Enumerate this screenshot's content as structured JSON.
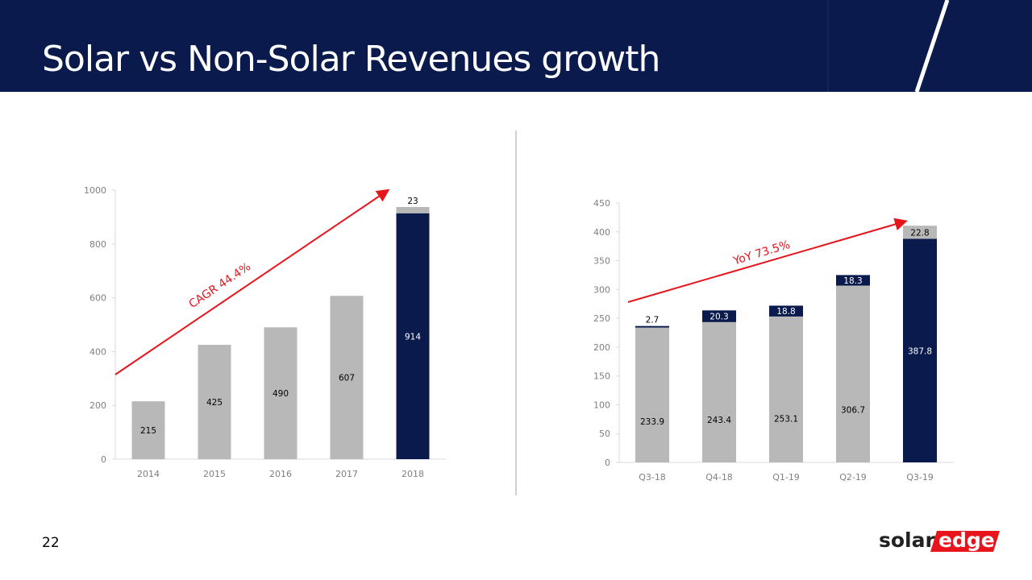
{
  "slide": {
    "title": "Solar vs Non-Solar Revenues growth",
    "page_number": "22",
    "logo": "solaredge",
    "colors": {
      "header": "#0a1a4c",
      "navy": "#0a1a4c",
      "gray": "#b8b8b8",
      "arrow": "#e8141c"
    }
  },
  "chart_data": [
    {
      "type": "bar",
      "stacked": true,
      "categories": [
        "2014",
        "2015",
        "2016",
        "2017",
        "2018"
      ],
      "series": [
        {
          "values": [
            215,
            425,
            490,
            607,
            914
          ],
          "colors": [
            "#b8b8b8",
            "#b8b8b8",
            "#b8b8b8",
            "#b8b8b8",
            "#0a1a4c"
          ],
          "labels": [
            "215",
            "425",
            "490",
            "607",
            "914"
          ]
        },
        {
          "values": [
            0,
            0,
            0,
            0,
            23
          ],
          "colors": [
            "#b8b8b8",
            "#b8b8b8",
            "#b8b8b8",
            "#b8b8b8",
            "#b8b8b8"
          ],
          "labels": [
            "",
            "",
            "",
            "",
            "23"
          ]
        }
      ],
      "ylim": [
        0,
        1000
      ],
      "yticks": [
        "0",
        "200",
        "400",
        "600",
        "800",
        "1000"
      ],
      "annotation": "CAGR 44.4%",
      "grid": false,
      "legend": "none"
    },
    {
      "type": "bar",
      "stacked": true,
      "categories": [
        "Q3-18",
        "Q4-18",
        "Q1-19",
        "Q2-19",
        "Q3-19"
      ],
      "series": [
        {
          "values": [
            233.9,
            243.4,
            253.1,
            306.7,
            387.8
          ],
          "colors": [
            "#b8b8b8",
            "#b8b8b8",
            "#b8b8b8",
            "#b8b8b8",
            "#0a1a4c"
          ],
          "labels": [
            "233.9",
            "243.4",
            "253.1",
            "306.7",
            "387.8"
          ]
        },
        {
          "values": [
            2.7,
            20.3,
            18.8,
            18.3,
            22.8
          ],
          "colors": [
            "#0a1a4c",
            "#0a1a4c",
            "#0a1a4c",
            "#0a1a4c",
            "#b8b8b8"
          ],
          "labels": [
            "2.7",
            "20.3",
            "18.8",
            "18.3",
            "22.8"
          ]
        }
      ],
      "ylim": [
        0,
        450
      ],
      "yticks": [
        "0",
        "50",
        "100",
        "150",
        "200",
        "250",
        "300",
        "350",
        "400",
        "450"
      ],
      "annotation": "YoY 73.5%",
      "grid": false,
      "legend": "none"
    }
  ]
}
